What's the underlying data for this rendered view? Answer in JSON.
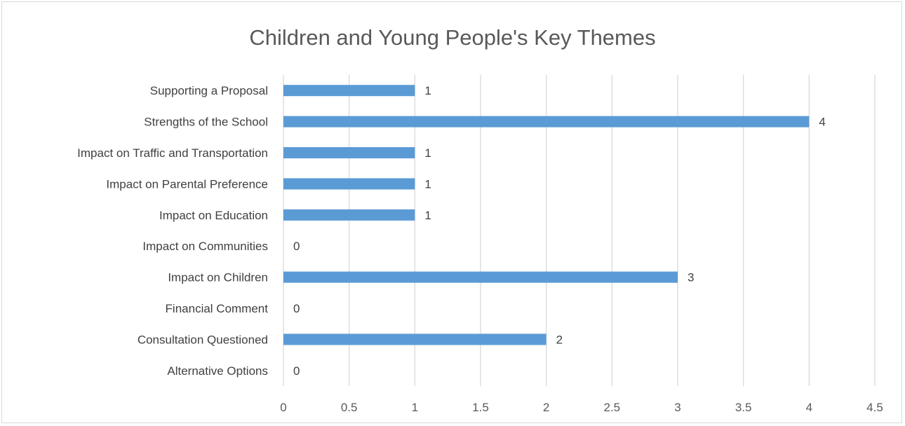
{
  "chart_data": {
    "type": "bar",
    "orientation": "horizontal",
    "title": "Children and Young People's Key Themes",
    "categories": [
      "Supporting a Proposal",
      "Strengths of the School",
      "Impact on Traffic and Transportation",
      "Impact on Parental Preference",
      "Impact on Education",
      "Impact on Communities",
      "Impact on Children",
      "Financial Comment",
      "Consultation Questioned",
      "Alternative Options"
    ],
    "values": [
      1,
      4,
      1,
      1,
      1,
      0,
      3,
      0,
      2,
      0
    ],
    "data_labels": [
      "1",
      "4",
      "1",
      "1",
      "1",
      "0",
      "3",
      "0",
      "2",
      "0"
    ],
    "xlim": [
      0,
      4.5
    ],
    "ticks": [
      "0",
      "0.5",
      "1",
      "1.5",
      "2",
      "2.5",
      "3",
      "3.5",
      "4",
      "4.5"
    ],
    "grid": true,
    "legend": "none",
    "bar_color": "#5b9bd5",
    "grid_color": "#d9d9d9"
  }
}
